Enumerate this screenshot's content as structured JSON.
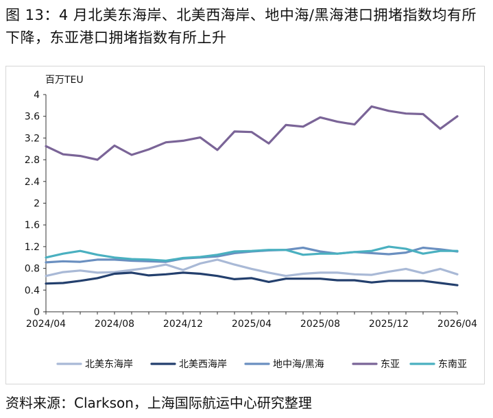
{
  "figure": {
    "title": "图 13：4 月北美东海岸、北美西海岸、地中海/黑海港口拥堵指数均有所下降，东亚港口拥堵指数有所上升",
    "source": "资料来源：Clarkson，上海国际航运中心研究整理"
  },
  "chart_data": {
    "type": "line",
    "ylabel": "百万TEU",
    "xlabel": "",
    "ylim": [
      0,
      4
    ],
    "yticks": [
      "0",
      "0.4",
      "0.8",
      "1.2",
      "1.6",
      "2",
      "2.4",
      "2.8",
      "3.2",
      "3.6",
      "4"
    ],
    "xticks": [
      "2024/04",
      "2024/08",
      "2024/12",
      "2025/04",
      "2025/08",
      "2025/12",
      "2026/04"
    ],
    "grid": false,
    "legend_position": "bottom",
    "categories": [
      "2024/04",
      "2024/05",
      "2024/06",
      "2024/07",
      "2024/08",
      "2024/09",
      "2024/10",
      "2024/11",
      "2024/12",
      "2025/01",
      "2025/02",
      "2025/03",
      "2025/04",
      "2025/05",
      "2025/06",
      "2025/07",
      "2025/08",
      "2025/09",
      "2025/10",
      "2025/11",
      "2025/12",
      "2026/01",
      "2026/02",
      "2026/03",
      "2026/04"
    ],
    "series": [
      {
        "name": "北美东海岸",
        "color": "#a9b9d6",
        "values": [
          0.66,
          0.73,
          0.76,
          0.72,
          0.73,
          0.77,
          0.81,
          0.87,
          0.77,
          0.89,
          0.96,
          0.87,
          0.79,
          0.72,
          0.66,
          0.7,
          0.72,
          0.72,
          0.69,
          0.68,
          0.74,
          0.79,
          0.71,
          0.79,
          0.69
        ]
      },
      {
        "name": "北美西海岸",
        "color": "#233f6d",
        "values": [
          0.52,
          0.53,
          0.57,
          0.62,
          0.7,
          0.72,
          0.67,
          0.69,
          0.72,
          0.7,
          0.66,
          0.6,
          0.62,
          0.55,
          0.61,
          0.61,
          0.61,
          0.58,
          0.58,
          0.54,
          0.57,
          0.57,
          0.57,
          0.53,
          0.49
        ]
      },
      {
        "name": "地中海/黑海",
        "color": "#6a8fc0",
        "values": [
          0.91,
          0.93,
          0.92,
          0.96,
          0.96,
          0.94,
          0.93,
          0.92,
          0.98,
          1.0,
          1.02,
          1.08,
          1.11,
          1.13,
          1.14,
          1.18,
          1.11,
          1.07,
          1.1,
          1.08,
          1.06,
          1.09,
          1.18,
          1.15,
          1.11
        ]
      },
      {
        "name": "东亚",
        "color": "#7a6497",
        "values": [
          3.05,
          2.9,
          2.87,
          2.8,
          3.06,
          2.89,
          2.99,
          3.12,
          3.15,
          3.21,
          2.98,
          3.32,
          3.31,
          3.1,
          3.44,
          3.41,
          3.58,
          3.5,
          3.45,
          3.78,
          3.7,
          3.65,
          3.64,
          3.37,
          3.6
        ]
      },
      {
        "name": "东南亚",
        "color": "#4ab0c0",
        "values": [
          1.0,
          1.07,
          1.12,
          1.05,
          1.0,
          0.97,
          0.96,
          0.94,
          0.99,
          1.01,
          1.05,
          1.11,
          1.12,
          1.14,
          1.14,
          1.05,
          1.07,
          1.07,
          1.1,
          1.12,
          1.2,
          1.16,
          1.07,
          1.12,
          1.12
        ]
      }
    ]
  }
}
